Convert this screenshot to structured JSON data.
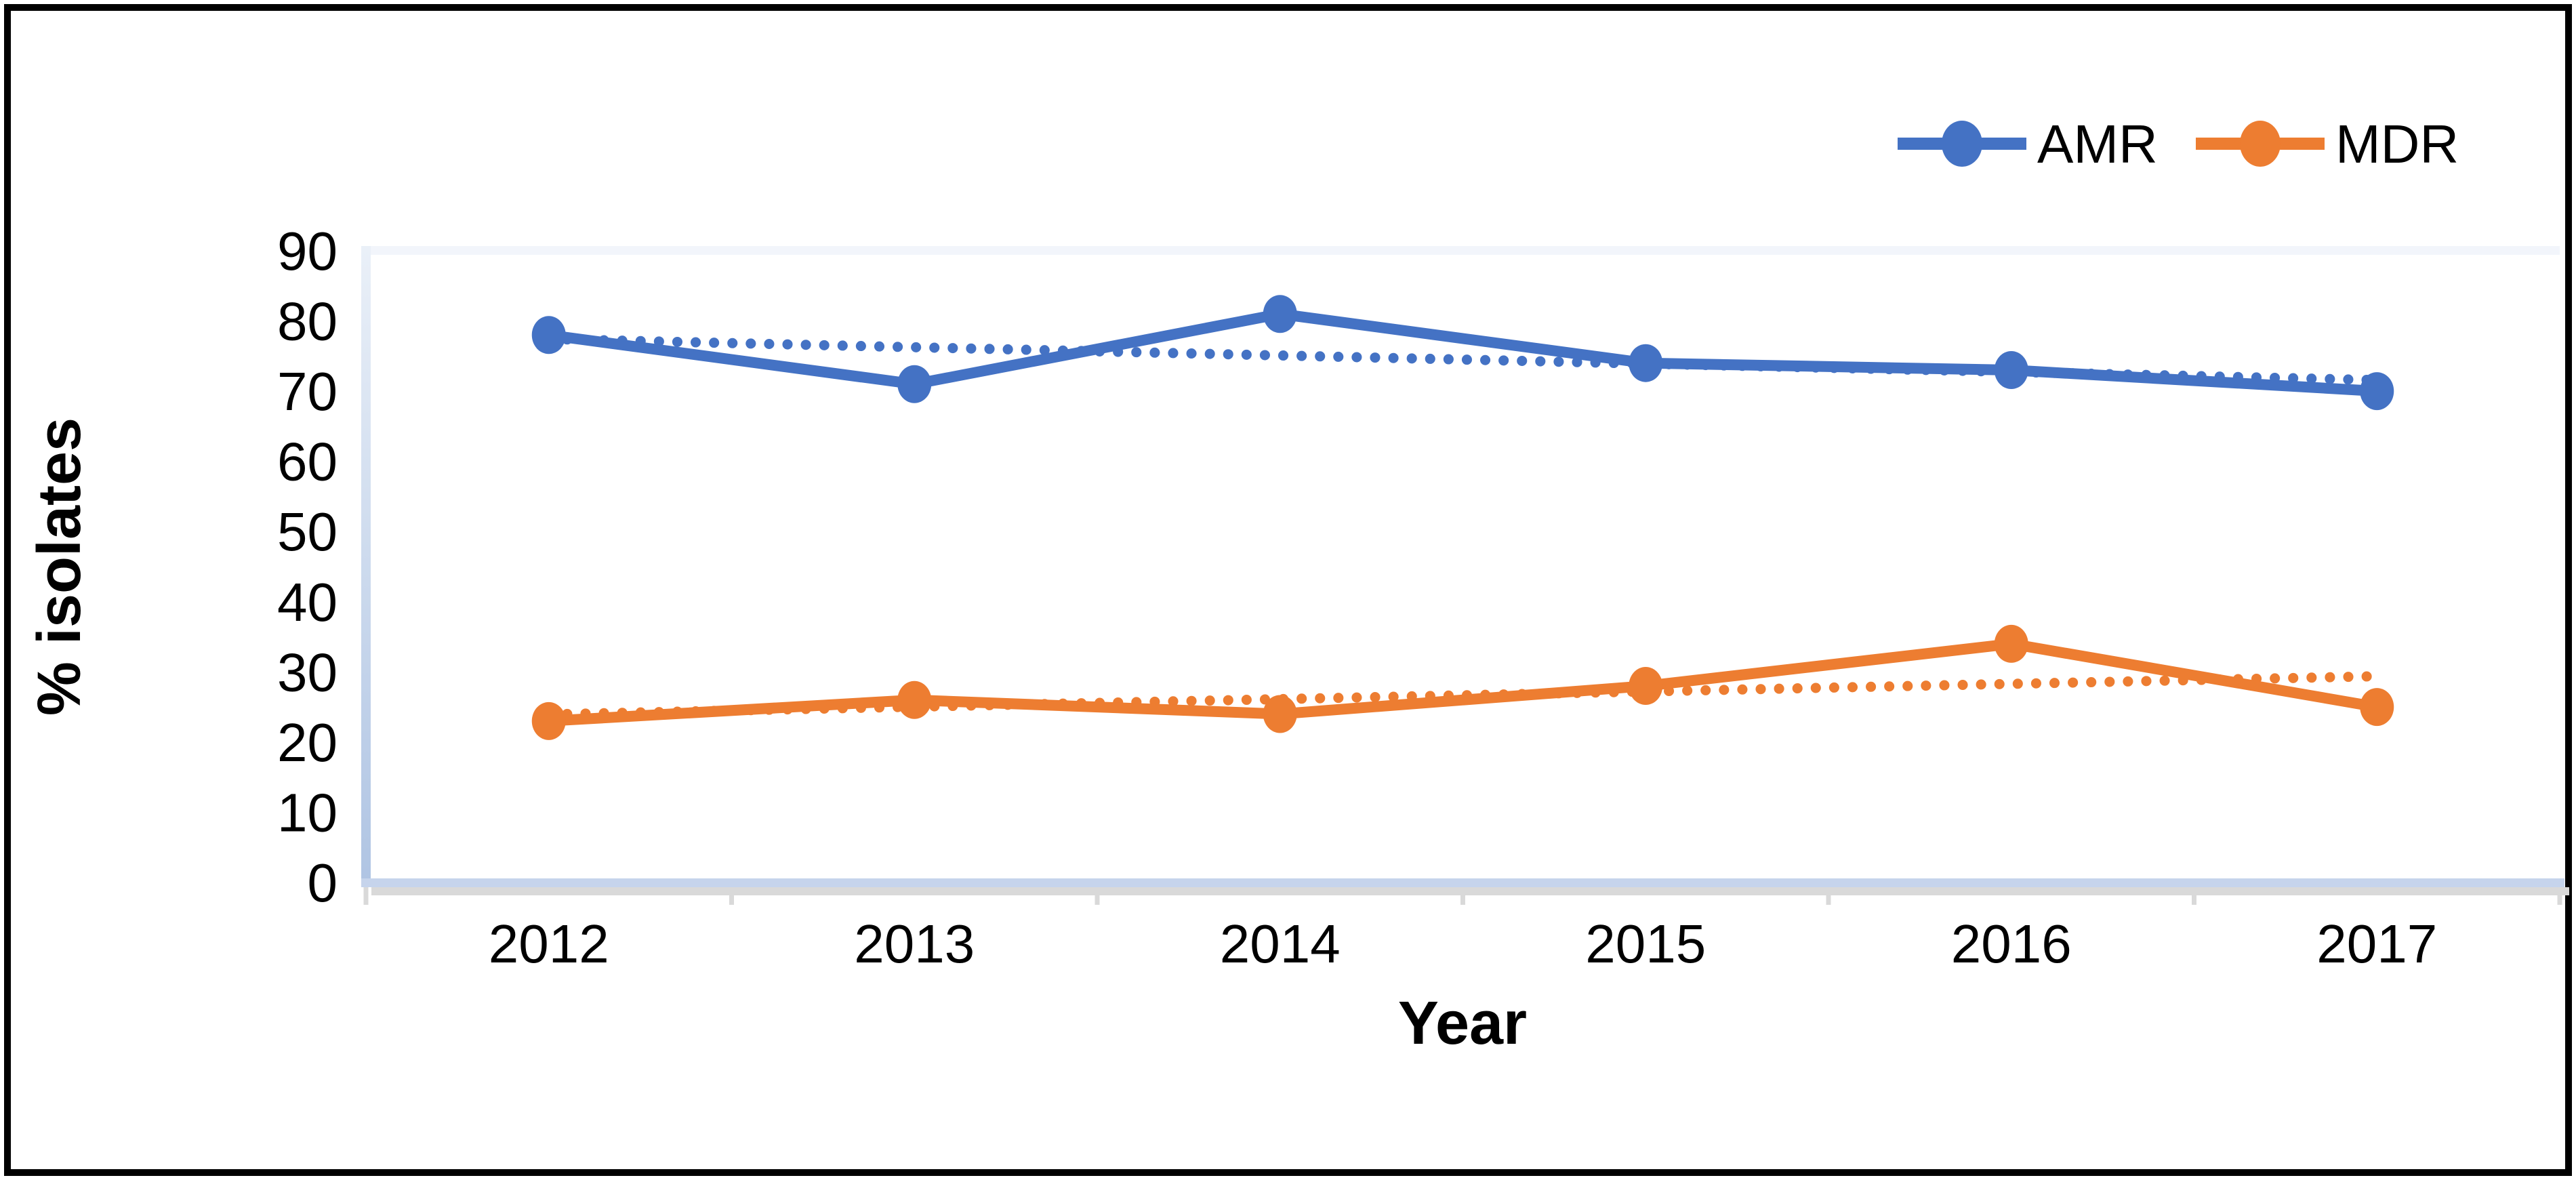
{
  "figure": {
    "background": "#FFFFFF",
    "border_color": "#000000"
  },
  "chart_data": {
    "type": "line",
    "title": "",
    "xlabel": "Year",
    "ylabel": "% isolates",
    "categories": [
      "2012",
      "2013",
      "2014",
      "2015",
      "2016",
      "2017"
    ],
    "series": [
      {
        "name": "AMR",
        "color": "#4472C4",
        "values": [
          78,
          71,
          81,
          74,
          73,
          70
        ],
        "trendline": "linear-dotted"
      },
      {
        "name": "MDR",
        "color": "#ED7D31",
        "values": [
          23,
          26,
          24,
          28,
          34,
          25
        ],
        "trendline": "linear-dotted"
      }
    ],
    "ylim": [
      0,
      90
    ],
    "yticks": [
      0,
      10,
      20,
      30,
      40,
      50,
      60,
      70,
      80,
      90
    ],
    "grid": false,
    "legend_position": "top-right",
    "marker": "circle",
    "axis_colors": {
      "y_axis_line": "#B7C9E5",
      "x_axis_line": "#C6D4EC",
      "x_axis_shadow": "#D9D9D9",
      "tick": "#D9D9D9",
      "plot_top_line": "#F2F5FB",
      "label_color": "#000000"
    }
  }
}
